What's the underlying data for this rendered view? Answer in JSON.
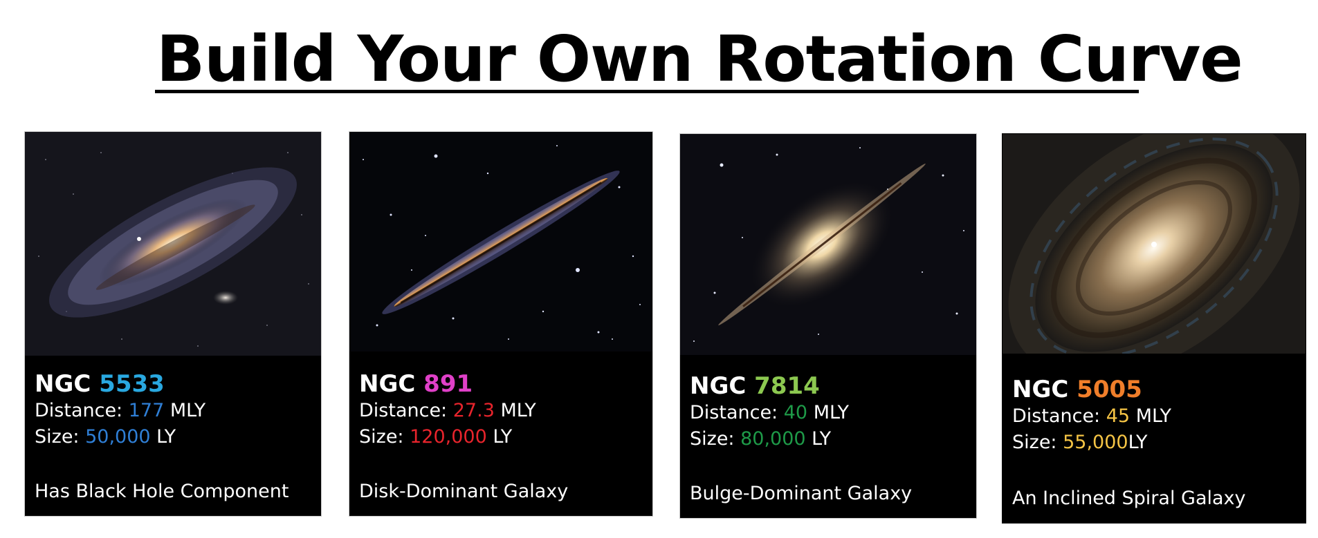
{
  "title": "Build Your Own Rotation Curve",
  "cards": [
    {
      "prefix": "NGC ",
      "number": "5533",
      "distance_label": "Distance: ",
      "distance_value": "177",
      "distance_unit": " MLY",
      "size_label": "Size: ",
      "size_value": "50,000",
      "size_unit": " LY",
      "description": "Has Black Hole Component",
      "number_color": "#29a8e0",
      "value_color": "#2f7fd6",
      "image_icon": "spiral-galaxy-image"
    },
    {
      "prefix": "NGC ",
      "number": "891",
      "distance_label": "Distance: ",
      "distance_value": "27.3",
      "distance_unit": " MLY",
      "size_label": "Size: ",
      "size_value": "120,000",
      "size_unit": " LY",
      "description": "Disk-Dominant Galaxy",
      "number_color": "#e040c8",
      "value_color": "#e8242c",
      "image_icon": "edge-on-galaxy-image"
    },
    {
      "prefix": "NGC ",
      "number": "7814",
      "distance_label": "Distance: ",
      "distance_value": "40",
      "distance_unit": " MLY",
      "size_label": "Size: ",
      "size_value": "80,000",
      "size_unit": " LY",
      "description": "Bulge-Dominant Galaxy",
      "number_color": "#8cc850",
      "value_color": "#1e9a48",
      "image_icon": "bulge-galaxy-image"
    },
    {
      "prefix": "NGC ",
      "number": "5005",
      "distance_label": "Distance: ",
      "distance_value": "45",
      "distance_unit": " MLY",
      "size_label": "Size: ",
      "size_value": "55,000",
      "size_unit": "LY",
      "description": "An Inclined Spiral Galaxy",
      "number_color": "#f07e2a",
      "value_color": "#f5c445",
      "image_icon": "inclined-spiral-galaxy-image"
    }
  ]
}
